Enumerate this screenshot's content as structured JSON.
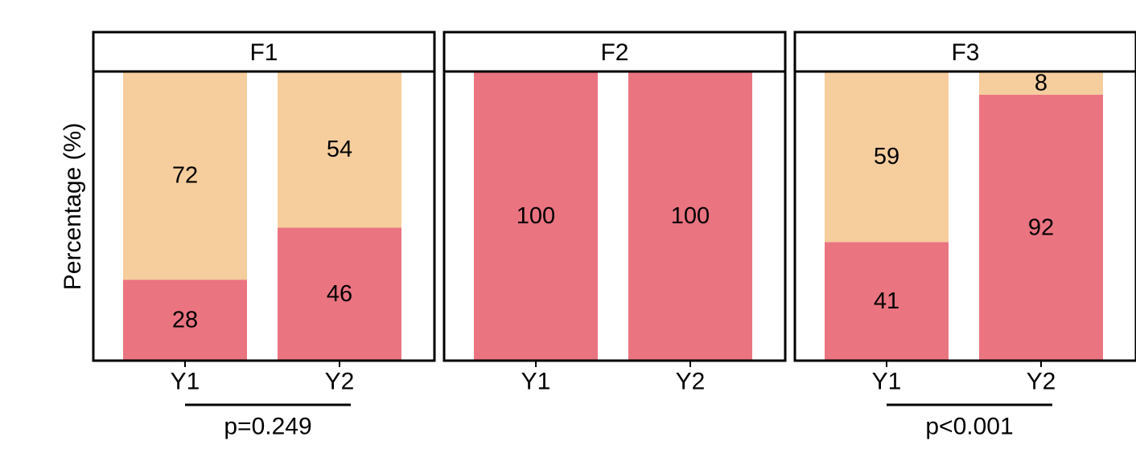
{
  "chart_data": {
    "type": "bar",
    "stacked": true,
    "percent": true,
    "ylabel": "Percentage (%)",
    "xlabel": "",
    "ylim": [
      0,
      100
    ],
    "grid": false,
    "categories": [
      "Y1",
      "Y2"
    ],
    "colors": {
      "bottom": "#EA7480",
      "top": "#F6CD9D"
    },
    "panels": [
      {
        "name": "F1",
        "bottom": [
          28,
          46
        ],
        "top": [
          72,
          54
        ],
        "bottom_labels": [
          "28",
          "46"
        ],
        "top_labels": [
          "72",
          "54"
        ],
        "p_value": "p=0.249"
      },
      {
        "name": "F2",
        "bottom": [
          100,
          100
        ],
        "top": [
          0,
          0
        ],
        "bottom_labels": [
          "100",
          "100"
        ],
        "top_labels": [
          "",
          ""
        ],
        "p_value": ""
      },
      {
        "name": "F3",
        "bottom": [
          41,
          92
        ],
        "top": [
          59,
          8
        ],
        "bottom_labels": [
          "41",
          "92"
        ],
        "top_labels": [
          "59",
          "8"
        ],
        "p_value": "p<0.001"
      }
    ]
  }
}
